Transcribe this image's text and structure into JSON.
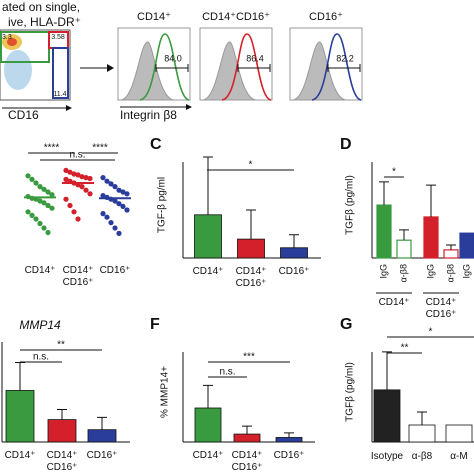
{
  "flow": {
    "header": [
      "ated on single,",
      "ive, HLA-DR⁺"
    ],
    "gates": [
      "3.3",
      "3.58",
      "11.4"
    ],
    "x_label": "CD16",
    "hist_label": "Integrin β8",
    "histograms": [
      {
        "title": "CD14⁺",
        "percent": "84.0",
        "color": "#3a9a3f"
      },
      {
        "title": "CD14⁺CD16⁺",
        "percent": "86.4",
        "color": "#d4202a"
      },
      {
        "title": "CD16⁺",
        "percent": "82.2",
        "color": "#2a3d9a"
      }
    ]
  },
  "chart_data": [
    {
      "type": "dot",
      "categories": [
        "CD14⁺",
        "CD14⁺ CD16⁺",
        "CD16⁺"
      ],
      "ylim": [
        0,
        100
      ],
      "groups": [
        {
          "color": "#3a9a3f",
          "values": [
            88,
            84,
            80,
            76,
            73,
            70,
            67,
            65,
            63,
            62,
            60,
            58,
            55,
            52,
            48,
            44,
            40,
            35,
            30,
            25
          ],
          "mean": 64
        },
        {
          "color": "#d4202a",
          "values": [
            94,
            92,
            90,
            89,
            87,
            86,
            85,
            84,
            82,
            80,
            78,
            76,
            72,
            68,
            62,
            55,
            48,
            40
          ],
          "mean": 80
        },
        {
          "color": "#2a3d9a",
          "values": [
            86,
            82,
            79,
            76,
            72,
            70,
            68,
            66,
            64,
            62,
            60,
            57,
            54,
            50,
            46,
            42,
            36,
            30,
            24
          ],
          "mean": 63
        }
      ],
      "annotations": [
        "****",
        "n.s.",
        "****"
      ]
    },
    {
      "type": "bar",
      "label": "C",
      "ylabel": "TGF-β pg/ml",
      "categories": [
        "CD14⁺",
        "CD14⁺ CD16⁺",
        "CD16⁺"
      ],
      "values": [
        80,
        35,
        19
      ],
      "errors": [
        107,
        54,
        24
      ],
      "colors": [
        "#3a9a3f",
        "#d4202a",
        "#2a3d9a"
      ],
      "ylim": [
        0,
        200
      ],
      "annotations": [
        "*"
      ]
    },
    {
      "type": "grouped",
      "label": "D",
      "ylabel": "TGFβ (pg/ml)",
      "categories": [
        "CD14⁺",
        "CD14⁺ CD16⁺",
        null
      ],
      "colors": [
        "#3a9a3f",
        "#d4202a",
        "#2a3d9a"
      ],
      "series": [
        {
          "name": "IgG",
          "values": [
            98,
            76,
            46
          ],
          "errors": [
            43,
            59,
            null
          ]
        },
        {
          "name": "α-β8",
          "values": [
            33,
            15,
            null
          ],
          "errors": [
            19,
            9,
            null
          ]
        }
      ],
      "ylim": [
        0,
        200
      ],
      "annotations": [
        "*"
      ]
    },
    {
      "type": "bar",
      "title": "MMP14",
      "categories": [
        "CD14⁺",
        "CD14⁺ CD16⁺",
        "CD16⁺"
      ],
      "values": [
        46,
        20,
        11
      ],
      "errors": [
        25,
        9,
        11
      ],
      "colors": [
        "#3a9a3f",
        "#d4202a",
        "#2a3d9a"
      ],
      "ylim": [
        0,
        100
      ],
      "annotations": [
        "n.s.",
        "**"
      ]
    },
    {
      "type": "bar",
      "label": "F",
      "ylabel": "% MMP14+",
      "categories": [
        "CD14⁺",
        "CD14⁺ CD16⁺",
        "CD16⁺"
      ],
      "values": [
        15,
        3.5,
        2
      ],
      "errors": [
        10,
        3.5,
        2
      ],
      "colors": [
        "#3a9a3f",
        "#d4202a",
        "#2a3d9a"
      ],
      "ylim": [
        0,
        45
      ],
      "annotations": [
        "n.s.",
        "***"
      ]
    },
    {
      "type": "bar",
      "label": "G",
      "ylabel": "TGFβ (pg/ml)",
      "categories": [
        "Isotype",
        "α-β8",
        "α-M"
      ],
      "values": [
        92,
        30,
        30
      ],
      "errors": [
        67,
        23,
        null
      ],
      "colors": [
        "#222222",
        "#ffffff",
        "#ffffff"
      ],
      "ylim": [
        0,
        180
      ],
      "annotations": [
        "**",
        "*"
      ]
    }
  ]
}
